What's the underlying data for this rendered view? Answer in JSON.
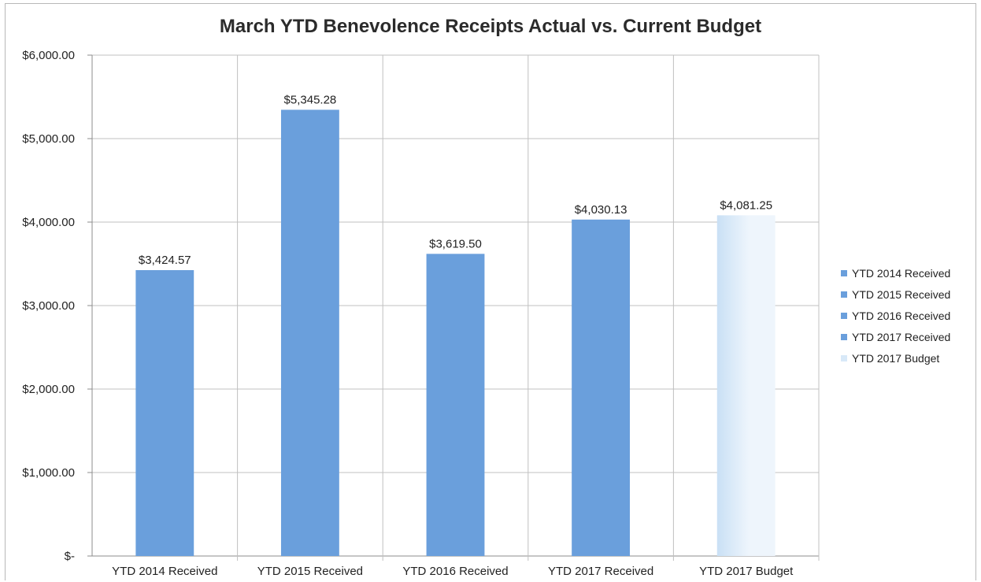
{
  "chart_data": {
    "type": "bar",
    "title": "March YTD Benevolence Receipts Actual vs. Current Budget",
    "xlabel": "",
    "ylabel": "",
    "categories": [
      "YTD 2014 Received",
      "YTD 2015 Received",
      "YTD 2016 Received",
      "YTD 2017 Received",
      "YTD 2017 Budget"
    ],
    "values": [
      3424.57,
      5345.28,
      3619.5,
      4030.13,
      4081.25
    ],
    "data_labels": [
      "$3,424.57",
      "$5,345.28",
      "$3,619.50",
      "$4,030.13",
      "$4,081.25"
    ],
    "ylim": [
      0,
      6000
    ],
    "y_ticks": [
      0,
      1000,
      2000,
      3000,
      4000,
      5000,
      6000
    ],
    "y_tick_labels": [
      "$-",
      "$1,000.00",
      "$2,000.00",
      "$3,000.00",
      "$4,000.00",
      "$5,000.00",
      "$6,000.00"
    ],
    "grid": true,
    "legend_position": "right",
    "legend": [
      {
        "label": "YTD 2014 Received",
        "color": "#6a9fdc"
      },
      {
        "label": "YTD 2015 Received",
        "color": "#6a9fdc"
      },
      {
        "label": "YTD 2016 Received",
        "color": "#6a9fdc"
      },
      {
        "label": "YTD 2017 Received",
        "color": "#6a9fdc"
      },
      {
        "label": "YTD 2017 Budget",
        "color": "#d8e9f8"
      }
    ],
    "colors": {
      "bar": "#6a9fdc",
      "budget_light": "#eef5fc",
      "budget_dark": "#c9e0f5",
      "grid": "#c0c0c0",
      "axis": "#8c8c8c"
    }
  }
}
